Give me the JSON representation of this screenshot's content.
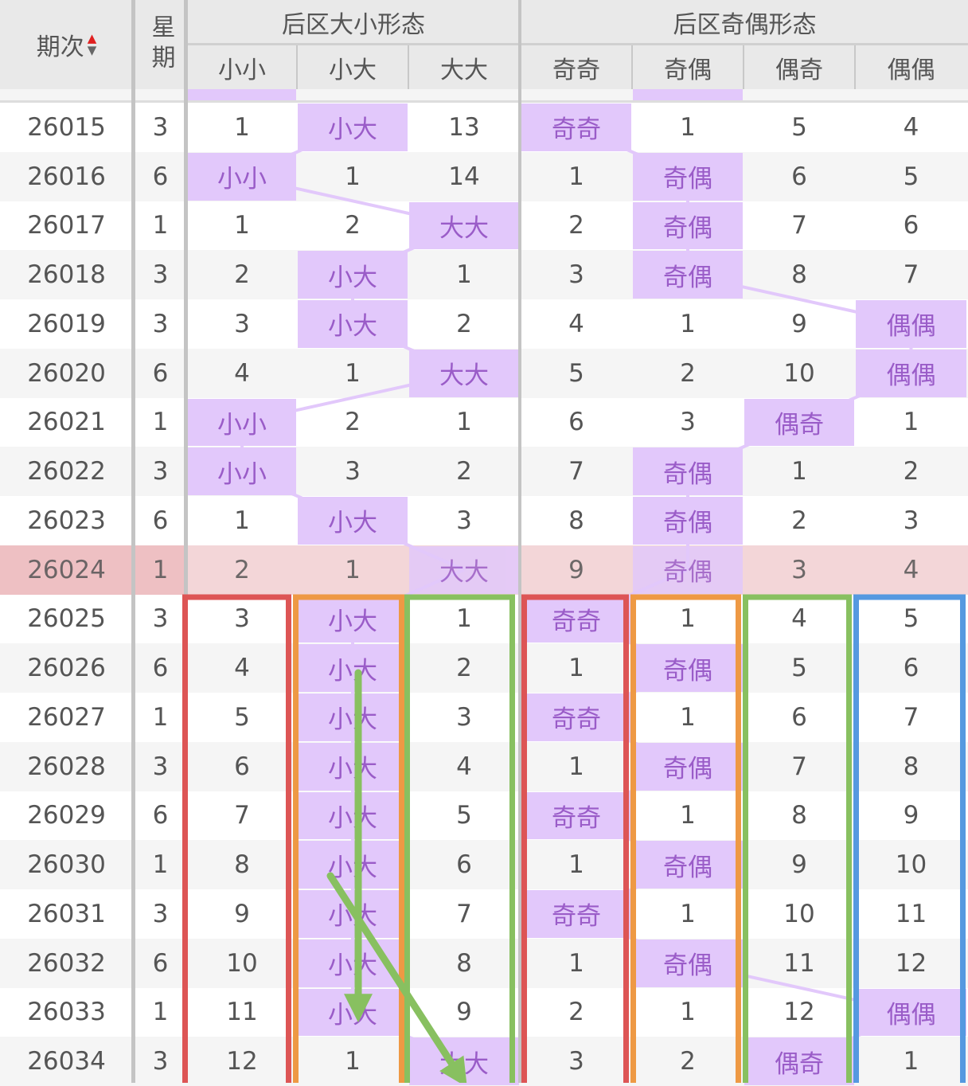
{
  "header": {
    "period_label": "期次",
    "weekday_label": "星期",
    "group_size_title": "后区大小形态",
    "group_parity_title": "后区奇偶形态",
    "size_columns": [
      "小小",
      "小大",
      "大大"
    ],
    "parity_columns": [
      "奇奇",
      "奇偶",
      "偶奇",
      "偶偶"
    ],
    "sort_icon": "sort-up-down-icon"
  },
  "colors": {
    "highlight_bg": "#e2c8fb",
    "highlight_text": "#9a5cc8",
    "current_row_bg": "#f3d6d8",
    "box_red": "#dd5555",
    "box_orange": "#ee9944",
    "box_green": "#88c060",
    "box_blue": "#5599e0",
    "arrow_green": "#88c060"
  },
  "rows": [
    {
      "period": "26015",
      "weekday": "3",
      "values": [
        "1",
        "小大",
        "13",
        "奇奇",
        "1",
        "5",
        "4"
      ]
    },
    {
      "period": "26016",
      "weekday": "6",
      "values": [
        "小小",
        "1",
        "14",
        "1",
        "奇偶",
        "6",
        "5"
      ]
    },
    {
      "period": "26017",
      "weekday": "1",
      "values": [
        "1",
        "2",
        "大大",
        "2",
        "奇偶",
        "7",
        "6"
      ]
    },
    {
      "period": "26018",
      "weekday": "3",
      "values": [
        "2",
        "小大",
        "1",
        "3",
        "奇偶",
        "8",
        "7"
      ]
    },
    {
      "period": "26019",
      "weekday": "3",
      "values": [
        "3",
        "小大",
        "2",
        "4",
        "1",
        "9",
        "偶偶"
      ]
    },
    {
      "period": "26020",
      "weekday": "6",
      "values": [
        "4",
        "1",
        "大大",
        "5",
        "2",
        "10",
        "偶偶"
      ]
    },
    {
      "period": "26021",
      "weekday": "1",
      "values": [
        "小小",
        "2",
        "1",
        "6",
        "3",
        "偶奇",
        "1"
      ]
    },
    {
      "period": "26022",
      "weekday": "3",
      "values": [
        "小小",
        "3",
        "2",
        "7",
        "奇偶",
        "1",
        "2"
      ]
    },
    {
      "period": "26023",
      "weekday": "6",
      "values": [
        "1",
        "小大",
        "3",
        "8",
        "奇偶",
        "2",
        "3"
      ]
    },
    {
      "period": "26024",
      "weekday": "1",
      "values": [
        "2",
        "1",
        "大大",
        "9",
        "奇偶",
        "3",
        "4"
      ],
      "current": true
    },
    {
      "period": "26025",
      "weekday": "3",
      "values": [
        "3",
        "小大",
        "1",
        "奇奇",
        "1",
        "4",
        "5"
      ]
    },
    {
      "period": "26026",
      "weekday": "6",
      "values": [
        "4",
        "小大",
        "2",
        "1",
        "奇偶",
        "5",
        "6"
      ]
    },
    {
      "period": "26027",
      "weekday": "1",
      "values": [
        "5",
        "小大",
        "3",
        "奇奇",
        "1",
        "6",
        "7"
      ]
    },
    {
      "period": "26028",
      "weekday": "3",
      "values": [
        "6",
        "小大",
        "4",
        "1",
        "奇偶",
        "7",
        "8"
      ]
    },
    {
      "period": "26029",
      "weekday": "6",
      "values": [
        "7",
        "小大",
        "5",
        "奇奇",
        "1",
        "8",
        "9"
      ]
    },
    {
      "period": "26030",
      "weekday": "1",
      "values": [
        "8",
        "小大",
        "6",
        "1",
        "奇偶",
        "9",
        "10"
      ]
    },
    {
      "period": "26031",
      "weekday": "3",
      "values": [
        "9",
        "小大",
        "7",
        "奇奇",
        "1",
        "10",
        "11"
      ]
    },
    {
      "period": "26032",
      "weekday": "6",
      "values": [
        "10",
        "小大",
        "8",
        "1",
        "奇偶",
        "11",
        "12"
      ]
    },
    {
      "period": "26033",
      "weekday": "1",
      "values": [
        "11",
        "小大",
        "9",
        "2",
        "1",
        "12",
        "偶偶"
      ]
    },
    {
      "period": "26034",
      "weekday": "3",
      "values": [
        "12",
        "1",
        "大大",
        "3",
        "2",
        "偶奇",
        "1"
      ]
    }
  ]
}
